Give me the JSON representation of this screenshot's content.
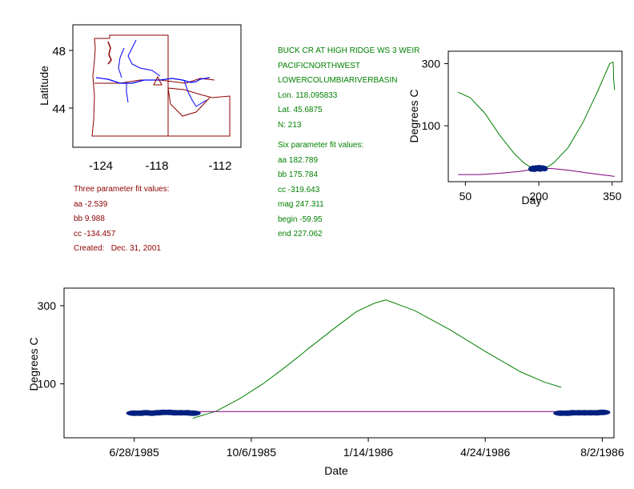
{
  "colors": {
    "map_outline": "#8b0000",
    "rivers": "#0000ff",
    "green_curve": "#007f00",
    "purple_curve": "#7f007f",
    "points": "#002080",
    "info_left": "#8b0000",
    "info_right": "#007f00"
  },
  "map": {
    "ylabel": "Latitude",
    "xticks": [
      "-124",
      "-118",
      "-112"
    ],
    "yticks": [
      "48",
      "44"
    ],
    "station_marker": "triangle"
  },
  "station_info": {
    "lines": [
      "BUCK CR AT HIGH RIDGE WS 3 WEIR",
      "PACIFICNORTHWEST",
      "LOWERCOLUMBIARIVERBASIN",
      "Lon. 118.095833",
      "Lat. 45.6875",
      "N: 213"
    ],
    "fit_header": "Six parameter fit values:",
    "fit_lines": [
      "aa 182.789",
      "bb 175.784",
      "cc -319.643",
      "mag 247.311",
      "begin -59.95",
      "end 227.062"
    ]
  },
  "three_param": {
    "header": "Three parameter fit values:",
    "lines": [
      "aa -2.539",
      "bb 9.988",
      "cc -134.457"
    ],
    "created": "Created:   Dec. 31, 2001"
  },
  "chart_data": [
    {
      "type": "line",
      "xlabel": "Day",
      "ylabel": "Degrees C",
      "xticks": [
        50,
        200,
        350
      ],
      "yticks": [
        100,
        300
      ],
      "xlim": [
        15,
        370
      ],
      "ylim": [
        -80,
        340
      ],
      "series": [
        {
          "x": [
            35,
            60,
            90,
            120,
            150,
            170,
            185,
            195,
            205,
            215,
            230,
            260,
            290,
            320,
            345,
            352,
            353,
            355
          ],
          "y": [
            208,
            190,
            140,
            70,
            10,
            -20,
            -35,
            -38,
            -38,
            -35,
            -20,
            30,
            110,
            210,
            300,
            305,
            250,
            215
          ]
        },
        {
          "x": [
            35,
            80,
            120,
            160,
            190,
            210,
            230,
            260,
            300,
            340,
            355
          ],
          "y": [
            -57,
            -57,
            -53,
            -47,
            -40,
            -37,
            -38,
            -43,
            -52,
            -60,
            -63
          ]
        },
        {
          "x": [
            185,
            188,
            191,
            194,
            197,
            200,
            203,
            206,
            209,
            212
          ],
          "y": [
            -39,
            -37,
            -40,
            -36,
            -38,
            -35,
            -39,
            -36,
            -37,
            -38
          ]
        }
      ]
    },
    {
      "type": "line",
      "xlabel": "Date",
      "ylabel": "Degrees C",
      "xticks": [
        "6/28/1985",
        "10/6/1985",
        "1/14/1986",
        "4/24/1986",
        "8/2/1986"
      ],
      "yticks": [
        100,
        300
      ],
      "xlim": [
        -60,
        410
      ],
      "ylim": [
        -38,
        345
      ],
      "series": [
        {
          "x": [
            50,
            70,
            90,
            110,
            130,
            150,
            170,
            190,
            205,
            215,
            240,
            270,
            300,
            330,
            350,
            365
          ],
          "y": [
            12,
            30,
            62,
            100,
            145,
            193,
            240,
            285,
            306,
            315,
            287,
            238,
            183,
            131,
            105,
            91
          ]
        },
        {
          "x": [
            0,
            50,
            100,
            150,
            200,
            250,
            300,
            350,
            400
          ],
          "y": [
            28,
            29,
            29,
            29,
            29,
            29,
            29,
            29,
            29
          ]
        },
        {
          "x": [
            0,
            5,
            10,
            15,
            20,
            25,
            30,
            35,
            40,
            45,
            50,
            365,
            370,
            375,
            380,
            385,
            390,
            395,
            400
          ],
          "y": [
            25,
            25,
            26,
            25,
            26,
            27,
            27,
            26,
            26,
            26,
            25,
            25,
            25,
            26,
            26,
            26,
            26,
            26,
            27
          ]
        }
      ]
    }
  ]
}
